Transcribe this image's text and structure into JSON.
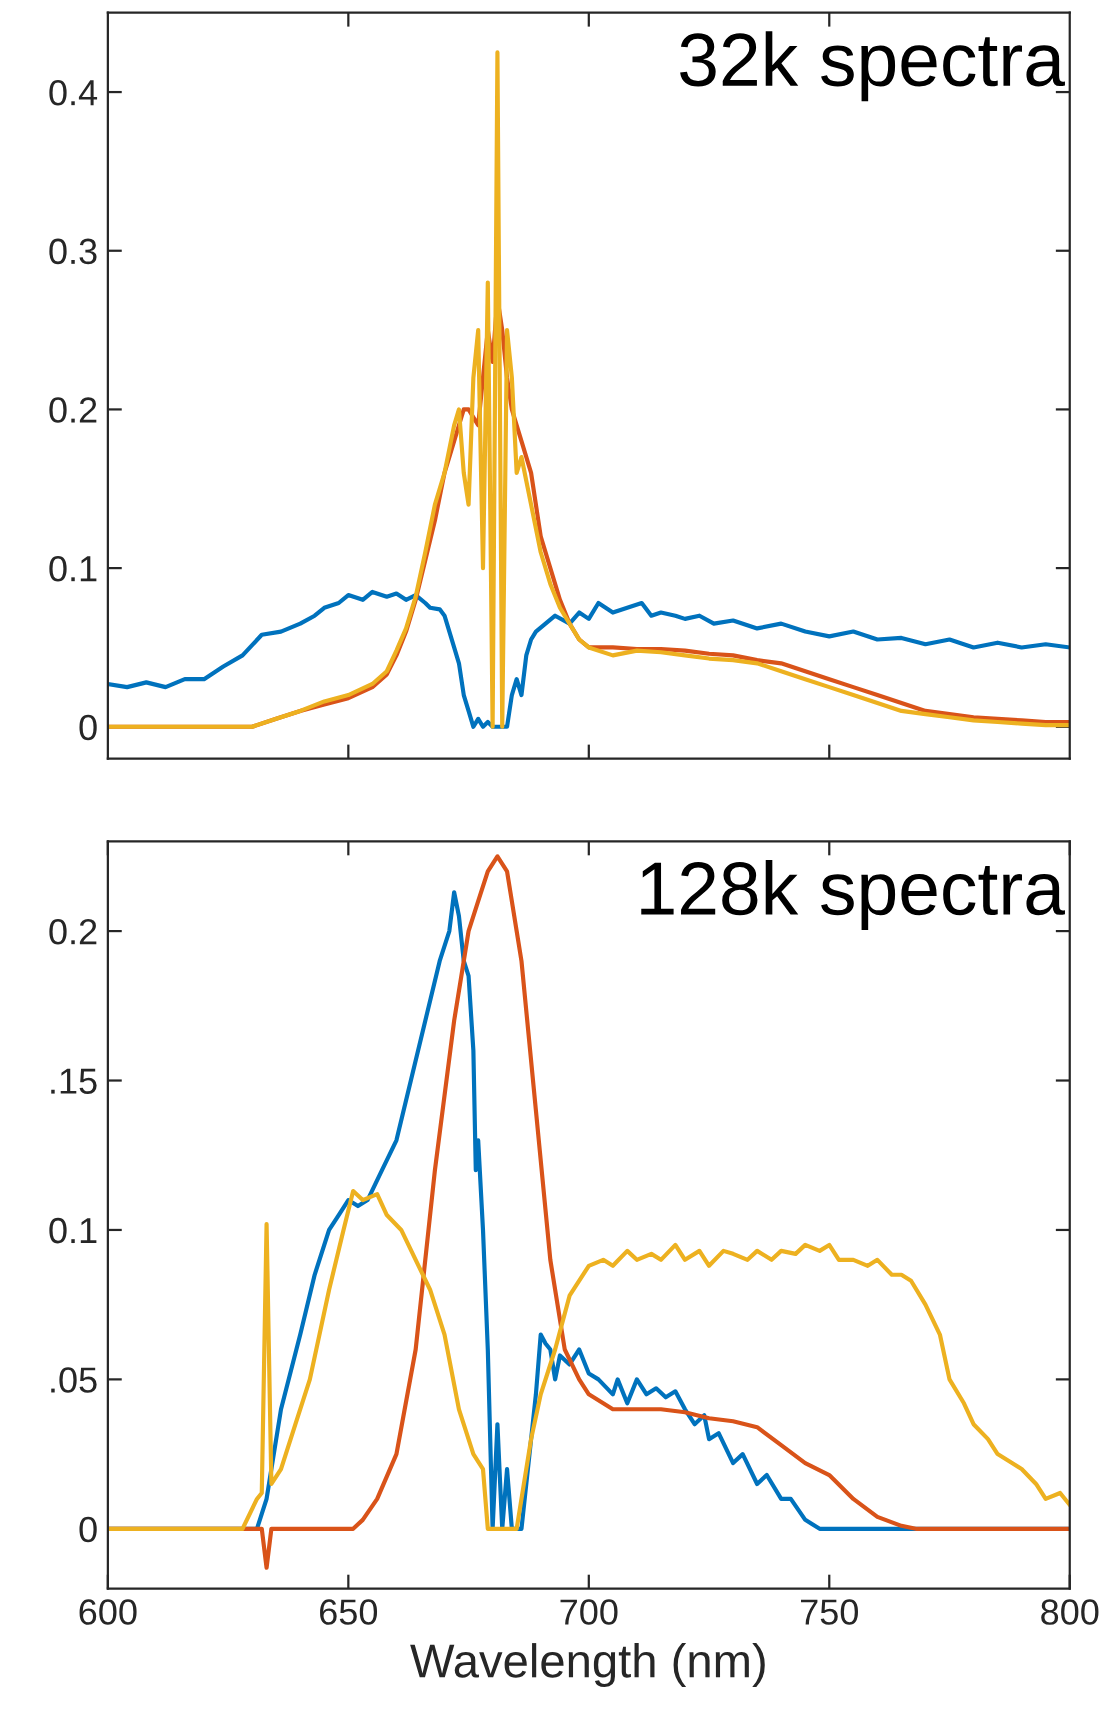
{
  "chart_data": [
    {
      "type": "line",
      "annotations": [
        "32k spectra"
      ],
      "xlim": [
        600,
        800
      ],
      "ylim": [
        -0.02,
        0.45
      ],
      "xticks": [
        {
          "value": 650,
          "label": null
        },
        {
          "value": 700,
          "label": null
        },
        {
          "value": 750,
          "label": null
        }
      ],
      "yticks": [
        0,
        0.1,
        0.2,
        0.3,
        0.4
      ],
      "tick_labels": "y",
      "grid": false,
      "legend": false,
      "series": [
        {
          "color": "#0072bd",
          "x": [
            600,
            604,
            608,
            612,
            616,
            620,
            624,
            628,
            632,
            636,
            640,
            643,
            645,
            648,
            650,
            653,
            655,
            658,
            660,
            662,
            664,
            666,
            667,
            669,
            670,
            672,
            673,
            674,
            675,
            676,
            677,
            678,
            679,
            680,
            681,
            682,
            683,
            684,
            685,
            686,
            687,
            688,
            689,
            691,
            693,
            696,
            698,
            700,
            702,
            705,
            708,
            711,
            713,
            715,
            718,
            720,
            723,
            726,
            730,
            735,
            740,
            745,
            750,
            755,
            760,
            765,
            770,
            775,
            780,
            785,
            790,
            795,
            800
          ],
          "values": [
            0.027,
            0.025,
            0.028,
            0.025,
            0.03,
            0.03,
            0.038,
            0.045,
            0.058,
            0.06,
            0.065,
            0.07,
            0.075,
            0.078,
            0.083,
            0.08,
            0.085,
            0.082,
            0.084,
            0.08,
            0.083,
            0.078,
            0.075,
            0.074,
            0.07,
            0.05,
            0.04,
            0.02,
            0.01,
            0.0,
            0.005,
            0.0,
            0.003,
            0.0,
            0.0,
            0.0,
            0.0,
            0.02,
            0.03,
            0.02,
            0.045,
            0.055,
            0.06,
            0.065,
            0.07,
            0.065,
            0.072,
            0.068,
            0.078,
            0.072,
            0.075,
            0.078,
            0.07,
            0.072,
            0.07,
            0.068,
            0.07,
            0.065,
            0.067,
            0.062,
            0.065,
            0.06,
            0.057,
            0.06,
            0.055,
            0.056,
            0.052,
            0.055,
            0.05,
            0.053,
            0.05,
            0.052,
            0.05
          ]
        },
        {
          "color": "#d95319",
          "x": [
            600,
            630,
            635,
            640,
            645,
            650,
            655,
            658,
            660,
            662,
            664,
            666,
            668,
            670,
            672,
            674,
            675,
            676,
            677,
            678,
            679,
            680,
            681,
            682,
            683,
            684,
            685,
            686,
            688,
            690,
            692,
            694,
            696,
            698,
            700,
            705,
            710,
            715,
            720,
            725,
            730,
            735,
            740,
            745,
            750,
            755,
            760,
            765,
            770,
            775,
            780,
            785,
            790,
            795,
            800
          ],
          "values": [
            0,
            0,
            0.005,
            0.01,
            0.014,
            0.018,
            0.025,
            0.033,
            0.045,
            0.06,
            0.08,
            0.105,
            0.13,
            0.16,
            0.18,
            0.2,
            0.2,
            0.195,
            0.19,
            0.22,
            0.25,
            0.23,
            0.27,
            0.25,
            0.22,
            0.2,
            0.19,
            0.18,
            0.16,
            0.12,
            0.1,
            0.08,
            0.065,
            0.055,
            0.05,
            0.05,
            0.049,
            0.049,
            0.048,
            0.046,
            0.045,
            0.042,
            0.04,
            0.035,
            0.03,
            0.025,
            0.02,
            0.015,
            0.01,
            0.008,
            0.006,
            0.005,
            0.004,
            0.003,
            0.003
          ]
        },
        {
          "color": "#edb120",
          "x": [
            600,
            630,
            635,
            640,
            645,
            650,
            655,
            658,
            660,
            662,
            664,
            666,
            668,
            670,
            672,
            673,
            674,
            675,
            676,
            677,
            678,
            679,
            680,
            681,
            682,
            683,
            684,
            685,
            686,
            688,
            690,
            692,
            694,
            696,
            698,
            700,
            705,
            710,
            715,
            720,
            725,
            730,
            735,
            740,
            745,
            750,
            755,
            760,
            765,
            770,
            775,
            780,
            785,
            790,
            795,
            800
          ],
          "values": [
            0,
            0,
            0.005,
            0.01,
            0.016,
            0.02,
            0.027,
            0.035,
            0.048,
            0.062,
            0.082,
            0.11,
            0.14,
            0.16,
            0.19,
            0.2,
            0.16,
            0.14,
            0.22,
            0.25,
            0.1,
            0.28,
            0.0,
            0.425,
            0.0,
            0.25,
            0.22,
            0.16,
            0.17,
            0.14,
            0.11,
            0.09,
            0.075,
            0.065,
            0.055,
            0.05,
            0.045,
            0.048,
            0.047,
            0.045,
            0.043,
            0.042,
            0.04,
            0.035,
            0.03,
            0.025,
            0.02,
            0.015,
            0.01,
            0.008,
            0.006,
            0.004,
            0.003,
            0.002,
            0.001,
            0.001
          ]
        }
      ]
    },
    {
      "type": "line",
      "annotations": [
        "128k spectra"
      ],
      "xlabel": "Wavelength (nm)",
      "xlim": [
        600,
        800
      ],
      "ylim": [
        -0.02,
        0.23
      ],
      "xticks": [
        600,
        650,
        700,
        750,
        800
      ],
      "yticks": [
        0,
        {
          "value": 0.05,
          "label": ".05"
        },
        0.1,
        {
          "value": 0.15,
          "label": ".15"
        },
        0.2
      ],
      "grid": false,
      "legend": false,
      "series": [
        {
          "color": "#0072bd",
          "x": [
            600,
            631,
            633,
            636,
            640,
            643,
            646,
            648,
            650,
            652,
            654,
            657,
            660,
            663,
            666,
            669,
            671,
            672,
            673,
            674,
            675,
            676,
            676.5,
            677,
            678,
            679,
            680,
            681,
            682,
            683,
            684,
            686,
            688,
            689,
            690,
            691,
            692,
            693,
            694,
            696,
            698,
            700,
            702,
            705,
            706,
            708,
            710,
            712,
            714,
            716,
            718,
            720,
            722,
            724,
            725,
            727,
            730,
            732,
            735,
            737,
            740,
            742,
            745,
            748,
            800
          ],
          "values": [
            0,
            0,
            0.01,
            0.04,
            0.065,
            0.085,
            0.1,
            0.105,
            0.11,
            0.108,
            0.11,
            0.12,
            0.13,
            0.15,
            0.17,
            0.19,
            0.2,
            0.213,
            0.205,
            0.19,
            0.185,
            0.16,
            0.12,
            0.13,
            0.1,
            0.06,
            0.0,
            0.035,
            0.0,
            0.02,
            0.0,
            0.0,
            0.03,
            0.045,
            0.065,
            0.062,
            0.06,
            0.05,
            0.058,
            0.055,
            0.06,
            0.052,
            0.05,
            0.045,
            0.05,
            0.042,
            0.05,
            0.045,
            0.047,
            0.044,
            0.046,
            0.04,
            0.035,
            0.038,
            0.03,
            0.032,
            0.022,
            0.025,
            0.015,
            0.018,
            0.01,
            0.01,
            0.003,
            0.0,
            0
          ]
        },
        {
          "color": "#d95319",
          "x": [
            600,
            632,
            633,
            634,
            651,
            653,
            656,
            660,
            664,
            668,
            672,
            675,
            677,
            679,
            681,
            683,
            685,
            686,
            689,
            692,
            695,
            698,
            700,
            705,
            710,
            715,
            720,
            725,
            730,
            735,
            740,
            745,
            750,
            755,
            760,
            765,
            768,
            800
          ],
          "values": [
            0,
            0,
            -0.013,
            0,
            0,
            0.003,
            0.01,
            0.025,
            0.06,
            0.12,
            0.17,
            0.2,
            0.21,
            0.22,
            0.225,
            0.22,
            0.2,
            0.19,
            0.14,
            0.09,
            0.06,
            0.05,
            0.045,
            0.04,
            0.04,
            0.04,
            0.039,
            0.037,
            0.036,
            0.034,
            0.028,
            0.022,
            0.018,
            0.01,
            0.004,
            0.001,
            0,
            0
          ]
        },
        {
          "color": "#edb120",
          "x": [
            600,
            628,
            631,
            632,
            633,
            634,
            636,
            639,
            642,
            646,
            649,
            651,
            653,
            656,
            658,
            661,
            664,
            667,
            670,
            673,
            676,
            678,
            679,
            685,
            688,
            690,
            693,
            696,
            700,
            703,
            705,
            708,
            710,
            713,
            715,
            718,
            720,
            723,
            725,
            728,
            730,
            733,
            735,
            738,
            740,
            743,
            745,
            748,
            750,
            752,
            755,
            758,
            760,
            763,
            765,
            767,
            770,
            773,
            775,
            778,
            780,
            783,
            785,
            788,
            790,
            793,
            795,
            798,
            800
          ],
          "values": [
            0,
            0,
            0.01,
            0.012,
            0.102,
            0.015,
            0.02,
            0.035,
            0.05,
            0.08,
            0.1,
            0.113,
            0.11,
            0.112,
            0.105,
            0.1,
            0.09,
            0.08,
            0.065,
            0.04,
            0.025,
            0.02,
            0,
            0,
            0.03,
            0.045,
            0.06,
            0.078,
            0.088,
            0.09,
            0.088,
            0.093,
            0.09,
            0.092,
            0.09,
            0.095,
            0.09,
            0.093,
            0.088,
            0.093,
            0.092,
            0.09,
            0.093,
            0.09,
            0.093,
            0.092,
            0.095,
            0.093,
            0.095,
            0.09,
            0.09,
            0.088,
            0.09,
            0.085,
            0.085,
            0.083,
            0.075,
            0.065,
            0.05,
            0.042,
            0.035,
            0.03,
            0.025,
            0.022,
            0.02,
            0.015,
            0.01,
            0.012,
            0.008
          ]
        }
      ]
    }
  ]
}
